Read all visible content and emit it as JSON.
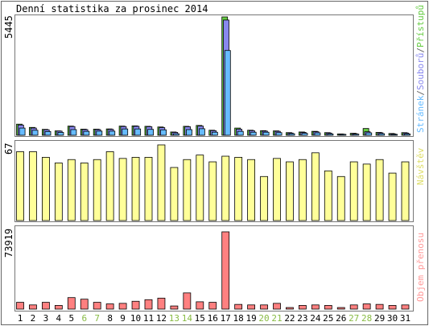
{
  "title": "Denní statistika za prosinec 2014",
  "colors": {
    "frame": "#666666",
    "pristupy": "#66cc44",
    "soubory": "#8888ee",
    "stranky": "#66bbff",
    "navstevy": "#ffff99",
    "prenos": "#ff8080",
    "weekend_label": "#88bb44",
    "weekday_label": "#000000"
  },
  "chart_data": [
    {
      "type": "bar",
      "title": "Denní statistika za prosinec 2014",
      "categories": [
        "1",
        "2",
        "3",
        "4",
        "5",
        "6",
        "7",
        "8",
        "9",
        "10",
        "11",
        "12",
        "13",
        "14",
        "15",
        "16",
        "17",
        "18",
        "19",
        "20",
        "21",
        "22",
        "23",
        "24",
        "25",
        "26",
        "27",
        "28",
        "29",
        "30",
        "31"
      ],
      "weekend_days": [
        "6",
        "7",
        "13",
        "14",
        "20",
        "21",
        "27",
        "28"
      ],
      "ymax_label": "5445",
      "ylim": [
        0,
        5445
      ],
      "legend": [
        "Stránek",
        "Souborů",
        "Přístupů"
      ],
      "legend_placement": "right",
      "series": [
        {
          "name": "Přístupů",
          "color": "#66cc44",
          "values": [
            510,
            360,
            270,
            200,
            420,
            280,
            280,
            290,
            420,
            430,
            410,
            380,
            150,
            410,
            450,
            230,
            5445,
            330,
            230,
            210,
            200,
            120,
            150,
            180,
            120,
            60,
            90,
            310,
            130,
            80,
            120
          ]
        },
        {
          "name": "Souborů",
          "color": "#8888ee",
          "values": [
            470,
            330,
            250,
            190,
            400,
            260,
            260,
            270,
            400,
            410,
            390,
            350,
            130,
            390,
            420,
            210,
            5300,
            280,
            210,
            190,
            180,
            100,
            130,
            160,
            100,
            50,
            70,
            160,
            110,
            60,
            100
          ]
        },
        {
          "name": "Stránek",
          "color": "#66bbff",
          "values": [
            330,
            230,
            170,
            130,
            260,
            180,
            190,
            190,
            290,
            290,
            270,
            250,
            70,
            260,
            300,
            140,
            3900,
            180,
            140,
            140,
            120,
            70,
            90,
            110,
            60,
            40,
            50,
            110,
            70,
            40,
            60
          ]
        }
      ]
    },
    {
      "type": "bar",
      "categories": [
        "1",
        "2",
        "3",
        "4",
        "5",
        "6",
        "7",
        "8",
        "9",
        "10",
        "11",
        "12",
        "13",
        "14",
        "15",
        "16",
        "17",
        "18",
        "19",
        "20",
        "21",
        "22",
        "23",
        "24",
        "25",
        "26",
        "27",
        "28",
        "29",
        "30",
        "31"
      ],
      "ymax_label": "67",
      "ylim": [
        0,
        67
      ],
      "legend": [
        "Návštěv"
      ],
      "legend_placement": "right",
      "series": [
        {
          "name": "Návštěv",
          "color": "#ffff99",
          "values": [
            61,
            61,
            56,
            51,
            54,
            51,
            54,
            61,
            55,
            56,
            56,
            67,
            47,
            54,
            58,
            52,
            57,
            56,
            54,
            39,
            55,
            52,
            54,
            60,
            44,
            39,
            52,
            50,
            54,
            42,
            52
          ]
        }
      ]
    },
    {
      "type": "bar",
      "categories": [
        "1",
        "2",
        "3",
        "4",
        "5",
        "6",
        "7",
        "8",
        "9",
        "10",
        "11",
        "12",
        "13",
        "14",
        "15",
        "16",
        "17",
        "18",
        "19",
        "20",
        "21",
        "22",
        "23",
        "24",
        "25",
        "26",
        "27",
        "28",
        "29",
        "30",
        "31"
      ],
      "ymax_label": "73919",
      "ylim": [
        0,
        73919
      ],
      "legend": [
        "Objem přenosu"
      ],
      "legend_placement": "right",
      "series": [
        {
          "name": "Objem přenosu",
          "color": "#ff8080",
          "values": [
            6500,
            4000,
            6500,
            3500,
            11000,
            9500,
            6500,
            5000,
            5500,
            7500,
            9000,
            10500,
            3000,
            15500,
            7000,
            6500,
            73919,
            4500,
            4000,
            4000,
            5500,
            1500,
            3500,
            4000,
            3500,
            1500,
            4000,
            5000,
            4500,
            3500,
            4000
          ]
        }
      ]
    }
  ]
}
